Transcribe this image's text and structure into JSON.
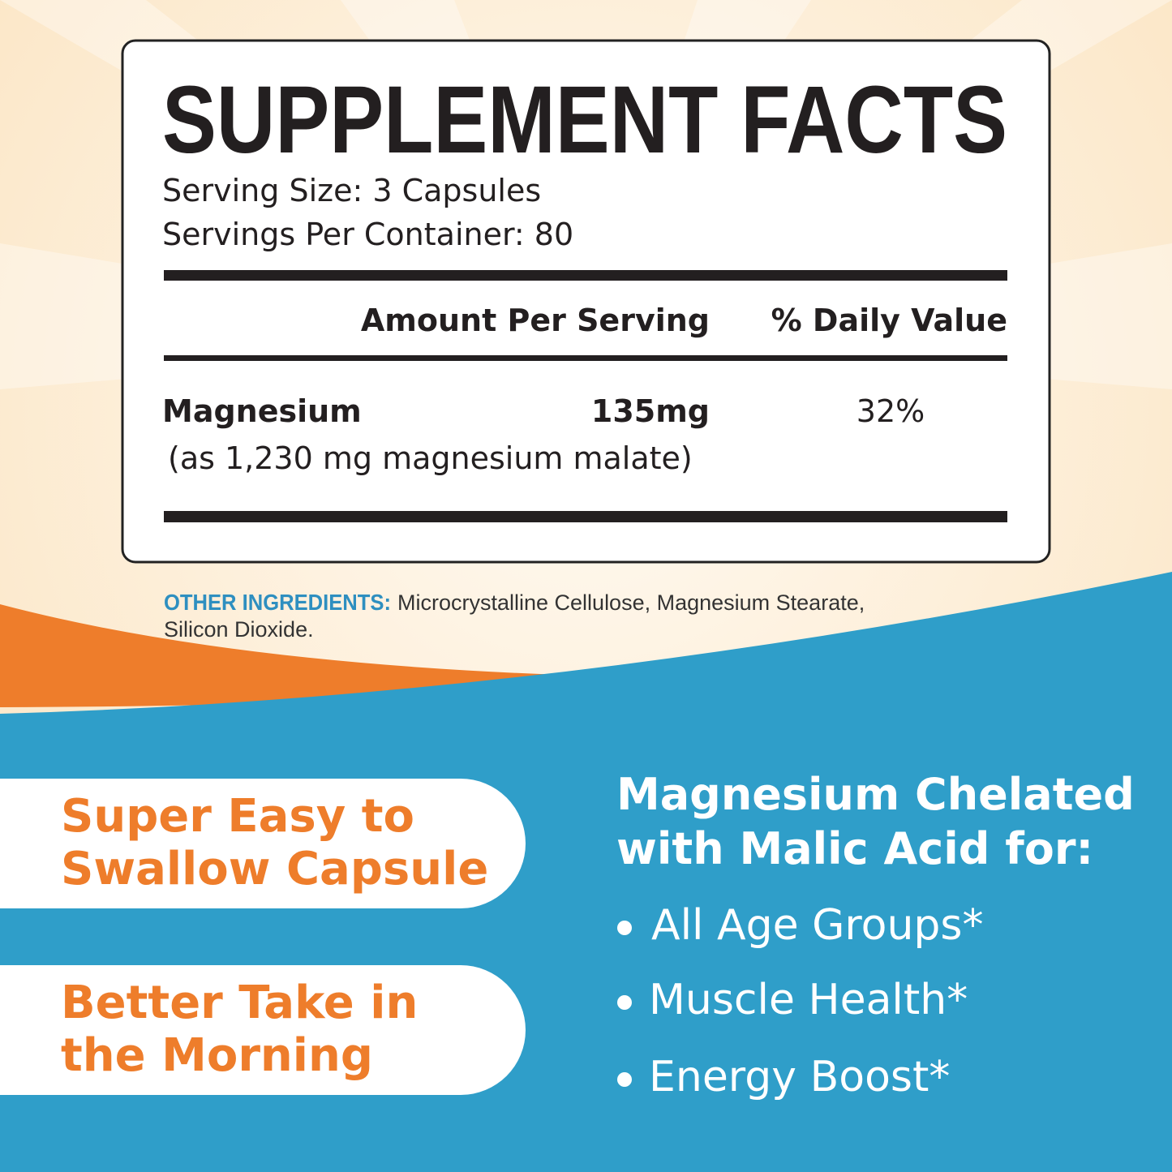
{
  "supplement_facts": {
    "title": "SUPPLEMENT FACTS",
    "serving_size": "Serving Size: 3 Capsules",
    "servings_per_container": "Servings Per Container: 80",
    "header": {
      "amount": "Amount Per Serving",
      "daily_value": "% Daily Value"
    },
    "rows": [
      {
        "name": "Magnesium",
        "amount": "135mg",
        "daily_value": "32%",
        "note": "(as 1,230 mg magnesium malate)"
      }
    ]
  },
  "other_ingredients": {
    "label": "OTHER INGREDIENTS:",
    "lines": [
      "Microcrystalline Cellulose, Magnesium Stearate,",
      "Silicon Dioxide."
    ]
  },
  "badges": [
    {
      "lines": [
        "Super Easy to",
        "Swallow Capsule"
      ]
    },
    {
      "lines": [
        "Better Take in",
        "the Morning"
      ]
    }
  ],
  "benefits": {
    "heading": [
      "Magnesium Chelated",
      "with Malic Acid for:"
    ],
    "items": [
      "All Age Groups*",
      "Muscle Health*",
      "Energy Boost*"
    ]
  }
}
